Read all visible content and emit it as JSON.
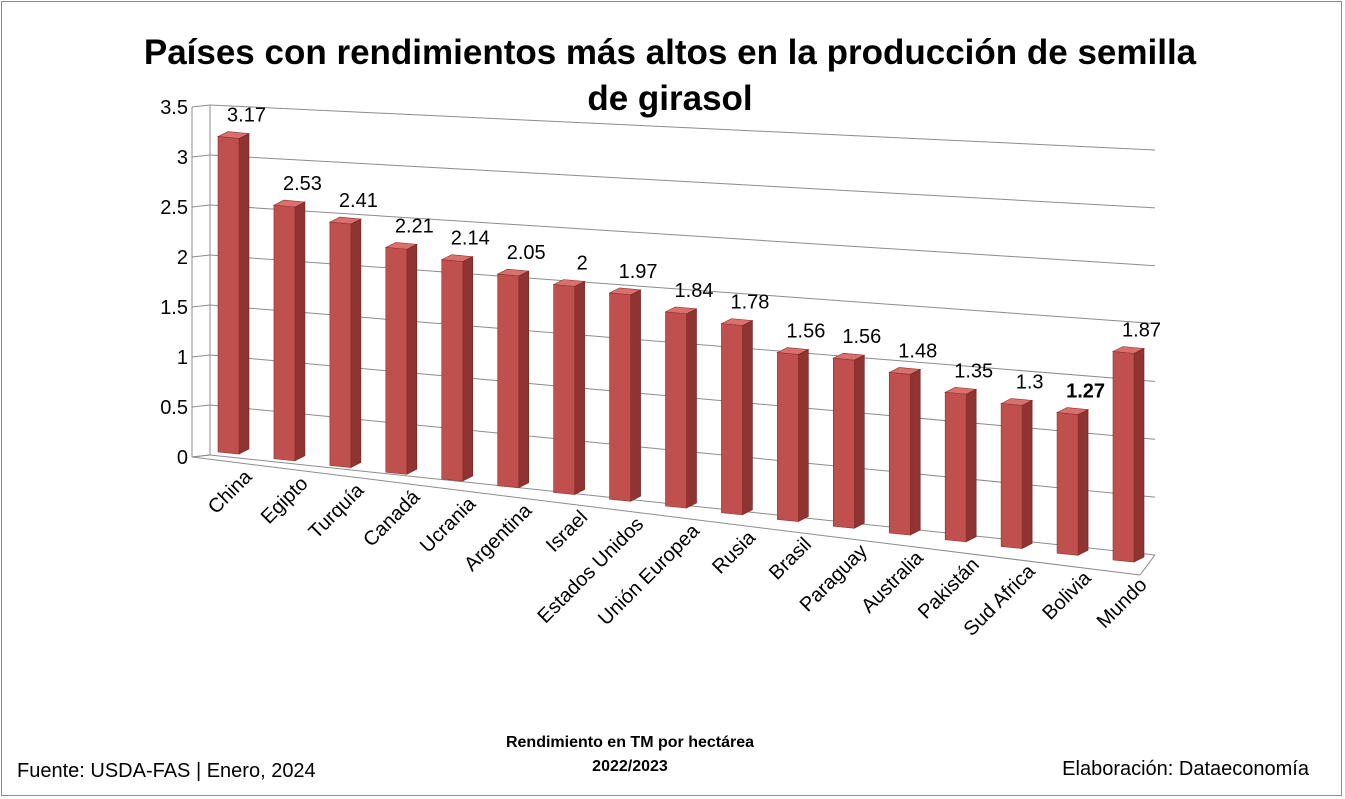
{
  "chart_data": {
    "type": "bar",
    "title": "Países con rendimientos más altos en la producción de semilla de girasol",
    "xlabel": "Rendimiento en TM por hectárea",
    "xlabel_sub": "2022/2023",
    "ylabel": "",
    "ylim": [
      0,
      3.5
    ],
    "yticks": [
      "0",
      "0.5",
      "1",
      "1.5",
      "2",
      "2.5",
      "3",
      "3.5"
    ],
    "categories": [
      "China",
      "Egipto",
      "Turquía",
      "Canadá",
      "Ucrania",
      "Argentina",
      "Israel",
      "Estados Unidos",
      "Unión Europea",
      "Rusia",
      "Brasil",
      "Paraguay",
      "Australia",
      "Pakistán",
      "Sud Africa",
      "Bolivia",
      "Mundo"
    ],
    "values": [
      3.17,
      2.53,
      2.41,
      2.21,
      2.14,
      2.05,
      2,
      1.97,
      1.84,
      1.78,
      1.56,
      1.56,
      1.48,
      1.35,
      1.3,
      1.27,
      1.87
    ],
    "value_labels": [
      "3.17",
      "2.53",
      "2.41",
      "2.21",
      "2.14",
      "2.05",
      "2",
      "1.97",
      "1.84",
      "1.78",
      "1.56",
      "1.56",
      "1.48",
      "1.35",
      "1.3",
      "1.27",
      "1.87"
    ],
    "highlight": "Bolivia",
    "bar_color": "#c0504d",
    "grid": true,
    "legend": "none",
    "style": "3d-perspective"
  },
  "footer": {
    "source": "Fuente:  USDA-FAS | Enero, 2024",
    "author": "Elaboración: Dataeconomía"
  }
}
